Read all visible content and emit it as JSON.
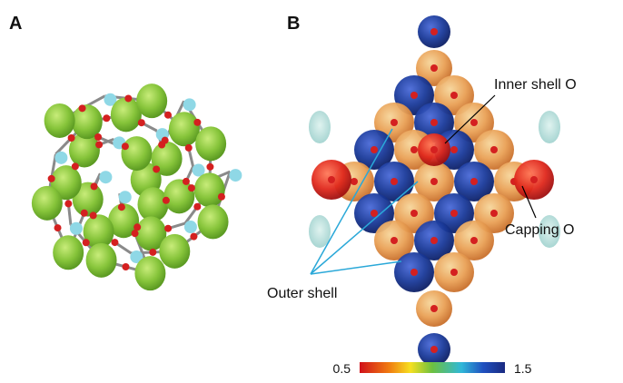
{
  "panels": [
    {
      "label": "A"
    },
    {
      "label": "B",
      "annotations": {
        "inner": "Inner shell O",
        "capping": "Capping O",
        "outer": "Outer shell"
      },
      "colorbar": {
        "min": 0.5,
        "max": 1.5
      }
    }
  ]
}
